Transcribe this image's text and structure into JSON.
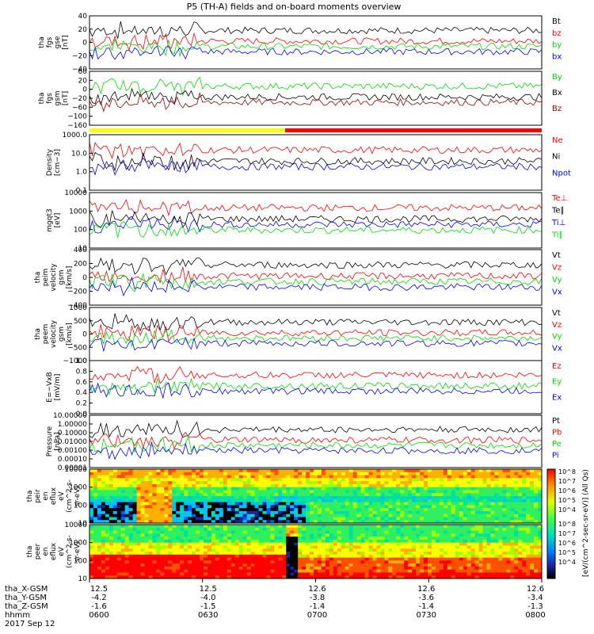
{
  "title": "P5 (TH-A) fields and on-board moments overview",
  "colors": {
    "black": "#000000",
    "red": "#ff0000",
    "green": "#00dd00",
    "blue": "#0000ff",
    "yellow": "#ffff00",
    "darkred": "#990000"
  },
  "time_axis": {
    "rows": [
      {
        "label": "tha_X-GSM",
        "values": [
          "12.5",
          "12.5",
          "12.6",
          "12.6",
          "12.6"
        ]
      },
      {
        "label": "tha_Y-GSM",
        "values": [
          "-4.2",
          "-4.0",
          "-3.8",
          "-3.6",
          "-3.4"
        ]
      },
      {
        "label": "tha_Z-GSM",
        "values": [
          "-1.6",
          "-1.5",
          "-1.4",
          "-1.4",
          "-1.3"
        ]
      },
      {
        "label": "hhmm",
        "values": [
          "0600",
          "0630",
          "0700",
          "0730",
          "0800"
        ]
      }
    ],
    "date": "2017 Sep 12"
  },
  "colorbar": {
    "ticks": [
      "10^8",
      "10^7",
      "10^6",
      "10^5",
      "10^4"
    ],
    "label": "[eV/(cm^2-sec-sr-eV)] (All Qs)"
  },
  "chart_data": [
    {
      "type": "line",
      "id": "fgs",
      "ylabel": [
        "tha",
        "fgs",
        "gse",
        "[nT]"
      ],
      "yticks": [
        "40",
        "20",
        "0",
        "−20",
        "−40"
      ],
      "ylim": [
        -40,
        40
      ],
      "series": [
        {
          "name": "Bt",
          "color": "black"
        },
        {
          "name": "bz",
          "color": "red"
        },
        {
          "name": "by",
          "color": "green"
        },
        {
          "name": "bx",
          "color": "blue"
        }
      ]
    },
    {
      "type": "line",
      "id": "fgs_gsm",
      "ylabel": [
        "tha",
        "fgs",
        "gsm",
        "[nT]"
      ],
      "yticks": [
        "60",
        "20",
        "0",
        "−20",
        "−60",
        "−100",
        "−160"
      ],
      "ylim": [
        -160,
        60
      ],
      "series": [
        {
          "name": "By",
          "color": "green"
        },
        {
          "name": "Bx",
          "color": "black"
        },
        {
          "name": "Bz",
          "color": "darkred"
        }
      ]
    },
    {
      "type": "line",
      "id": "density",
      "ylabel": [
        "Density",
        "[cm−3]"
      ],
      "yticks": [
        "1000.0",
        "10.0",
        "1.0",
        "0.1"
      ],
      "ylim": [
        0.1,
        1000
      ],
      "log": true,
      "series": [
        {
          "name": "Ne",
          "color": "red"
        },
        {
          "name": "Ni",
          "color": "black"
        },
        {
          "name": "Npot",
          "color": "blue"
        }
      ]
    },
    {
      "type": "line",
      "id": "temp",
      "ylabel": [
        "mgqt3",
        "[eV]"
      ],
      "yticks": [
        "10000",
        "1000",
        "100",
        "10"
      ],
      "ylim": [
        10,
        10000
      ],
      "log": true,
      "series": [
        {
          "name": "Te⊥",
          "color": "red"
        },
        {
          "name": "Te∥",
          "color": "black"
        },
        {
          "name": "Ti⊥",
          "color": "blue"
        },
        {
          "name": "Ti∥",
          "color": "green"
        }
      ]
    },
    {
      "type": "line",
      "id": "ivel",
      "ylabel": [
        "tha",
        "peim",
        "velocity",
        "gsm",
        "[km/s]"
      ],
      "yticks": [
        "400",
        "200",
        "0",
        "−200",
        "−400"
      ],
      "ylim": [
        -400,
        400
      ],
      "series": [
        {
          "name": "Vt",
          "color": "black"
        },
        {
          "name": "Vz",
          "color": "red"
        },
        {
          "name": "Vy",
          "color": "green"
        },
        {
          "name": "Vx",
          "color": "blue"
        }
      ]
    },
    {
      "type": "line",
      "id": "evel",
      "ylabel": [
        "tha",
        "peem",
        "velocity",
        "gsm",
        "[km/s]"
      ],
      "yticks": [
        "1000",
        "500",
        "0",
        "−500",
        "−1000"
      ],
      "ylim": [
        -1000,
        1000
      ],
      "series": [
        {
          "name": "Vt",
          "color": "black"
        },
        {
          "name": "Vz",
          "color": "red"
        },
        {
          "name": "Vy",
          "color": "green"
        },
        {
          "name": "Vx",
          "color": "blue"
        }
      ]
    },
    {
      "type": "line",
      "id": "efield",
      "ylabel": [
        "E=−VxB",
        "[mV/m]"
      ],
      "yticks": [
        "1.0",
        "0.8",
        "0.6",
        "0.4",
        "0.2",
        "0.0"
      ],
      "ylim": [
        0,
        1
      ],
      "series": [
        {
          "name": "Ez",
          "color": "red"
        },
        {
          "name": "Ey",
          "color": "green"
        },
        {
          "name": "Ex",
          "color": "blue"
        }
      ]
    },
    {
      "type": "line",
      "id": "pressure",
      "ylabel": [
        "Pressure",
        "[nPa]"
      ],
      "yticks": [
        "10.00000",
        "1.00000",
        "0.10000",
        "0.01000",
        "0.00100",
        "0.00010",
        "0.00001"
      ],
      "ylim": [
        1e-05,
        10
      ],
      "log": true,
      "series": [
        {
          "name": "Pt",
          "color": "black"
        },
        {
          "name": "Pb",
          "color": "red"
        },
        {
          "name": "Pe",
          "color": "green"
        },
        {
          "name": "Pi",
          "color": "blue"
        }
      ]
    },
    {
      "type": "heatmap",
      "id": "ispec",
      "ylabel": [
        "tha",
        "peir",
        "en",
        "eflux",
        "eV",
        "(cm^2-s-",
        "sr-eV)"
      ],
      "yticks": [
        "10000",
        "1000",
        "100",
        "10"
      ],
      "ylim": [
        10,
        10000
      ]
    },
    {
      "type": "heatmap",
      "id": "espec",
      "ylabel": [
        "tha",
        "peer",
        "en",
        "eflux",
        "eV",
        "(cm^2-s-",
        "sr-eV)"
      ],
      "yticks": [
        "10000",
        "1000",
        "100",
        "10"
      ],
      "ylim": [
        10,
        10000
      ]
    }
  ]
}
